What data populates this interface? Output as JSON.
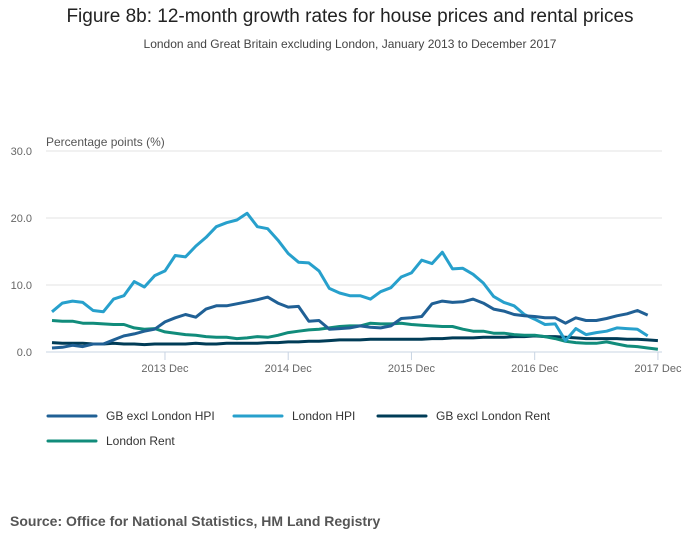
{
  "title": "Figure 8b: 12-month growth rates for house prices and rental prices",
  "subtitle": "London and Great Britain excluding London, January 2013 to December 2017",
  "source": "Source: Office for National Statistics, HM Land Registry",
  "chart_data": {
    "type": "line",
    "ylabel": "Percentage points (%)",
    "ylim": [
      0,
      30
    ],
    "yticks": [
      "0.0",
      "10.0",
      "20.0",
      "30.0"
    ],
    "x_start": "2013 Jan",
    "x_end": "2017 Dec",
    "xticks": [
      "2013 Dec",
      "2014 Dec",
      "2015 Dec",
      "2016 Dec",
      "2017 Dec"
    ],
    "grid": "horizontal",
    "legend_placement": "bottom",
    "series": [
      {
        "name": "GB excl London HPI",
        "color": "#206095",
        "values": [
          0.6,
          0.7,
          1.0,
          0.8,
          1.2,
          1.2,
          1.8,
          2.4,
          2.7,
          3.1,
          3.4,
          4.5,
          5.1,
          5.6,
          5.2,
          6.4,
          6.9,
          6.9,
          7.2,
          7.5,
          7.8,
          8.2,
          7.3,
          6.7,
          6.8,
          4.6,
          4.7,
          3.4,
          3.5,
          3.6,
          3.9,
          3.7,
          3.6,
          3.9,
          5.0,
          5.1,
          5.3,
          7.2,
          7.6,
          7.4,
          7.5,
          7.9,
          7.3,
          6.4,
          6.1,
          5.6,
          5.4,
          5.3,
          5.1,
          5.1,
          4.3,
          5.1,
          4.7,
          4.7,
          5.0,
          5.4,
          5.7,
          6.2,
          5.5
        ]
      },
      {
        "name": "London HPI",
        "color": "#27a0cc",
        "values": [
          6.0,
          7.3,
          7.6,
          7.4,
          6.2,
          6.0,
          7.9,
          8.4,
          10.5,
          9.7,
          11.4,
          12.1,
          14.4,
          14.2,
          15.8,
          17.1,
          18.7,
          19.3,
          19.7,
          20.7,
          18.7,
          18.4,
          16.7,
          14.7,
          13.4,
          13.3,
          12.1,
          9.5,
          8.8,
          8.4,
          8.4,
          7.9,
          9.0,
          9.6,
          11.2,
          11.8,
          13.7,
          13.2,
          14.9,
          12.4,
          12.5,
          11.6,
          10.3,
          8.3,
          7.4,
          6.9,
          5.6,
          4.9,
          4.1,
          4.2,
          1.7,
          3.5,
          2.6,
          2.9,
          3.1,
          3.6,
          3.5,
          3.4,
          2.4
        ]
      },
      {
        "name": "GB excl London Rent",
        "color": "#003c57",
        "values": [
          1.4,
          1.3,
          1.3,
          1.3,
          1.2,
          1.2,
          1.3,
          1.2,
          1.2,
          1.1,
          1.2,
          1.2,
          1.2,
          1.2,
          1.3,
          1.2,
          1.2,
          1.3,
          1.3,
          1.3,
          1.3,
          1.4,
          1.4,
          1.5,
          1.5,
          1.6,
          1.6,
          1.7,
          1.8,
          1.8,
          1.8,
          1.9,
          1.9,
          1.9,
          1.9,
          1.9,
          1.9,
          2.0,
          2.0,
          2.1,
          2.1,
          2.1,
          2.2,
          2.2,
          2.2,
          2.3,
          2.3,
          2.4,
          2.3,
          2.3,
          2.2,
          2.1,
          2.0,
          2.0,
          2.0,
          2.0,
          1.9,
          1.9,
          1.8,
          1.7
        ]
      },
      {
        "name": "London Rent",
        "color": "#118c7b",
        "values": [
          4.7,
          4.6,
          4.6,
          4.3,
          4.3,
          4.2,
          4.1,
          4.1,
          3.6,
          3.4,
          3.5,
          3.0,
          2.8,
          2.6,
          2.5,
          2.3,
          2.2,
          2.2,
          2.0,
          2.1,
          2.3,
          2.2,
          2.5,
          2.9,
          3.1,
          3.3,
          3.4,
          3.6,
          3.8,
          3.9,
          3.9,
          4.3,
          4.2,
          4.2,
          4.3,
          4.1,
          4.0,
          3.9,
          3.8,
          3.8,
          3.4,
          3.1,
          3.1,
          2.8,
          2.8,
          2.6,
          2.5,
          2.5,
          2.3,
          2.0,
          1.6,
          1.4,
          1.3,
          1.3,
          1.5,
          1.2,
          0.9,
          0.8,
          0.6,
          0.4
        ]
      }
    ]
  }
}
